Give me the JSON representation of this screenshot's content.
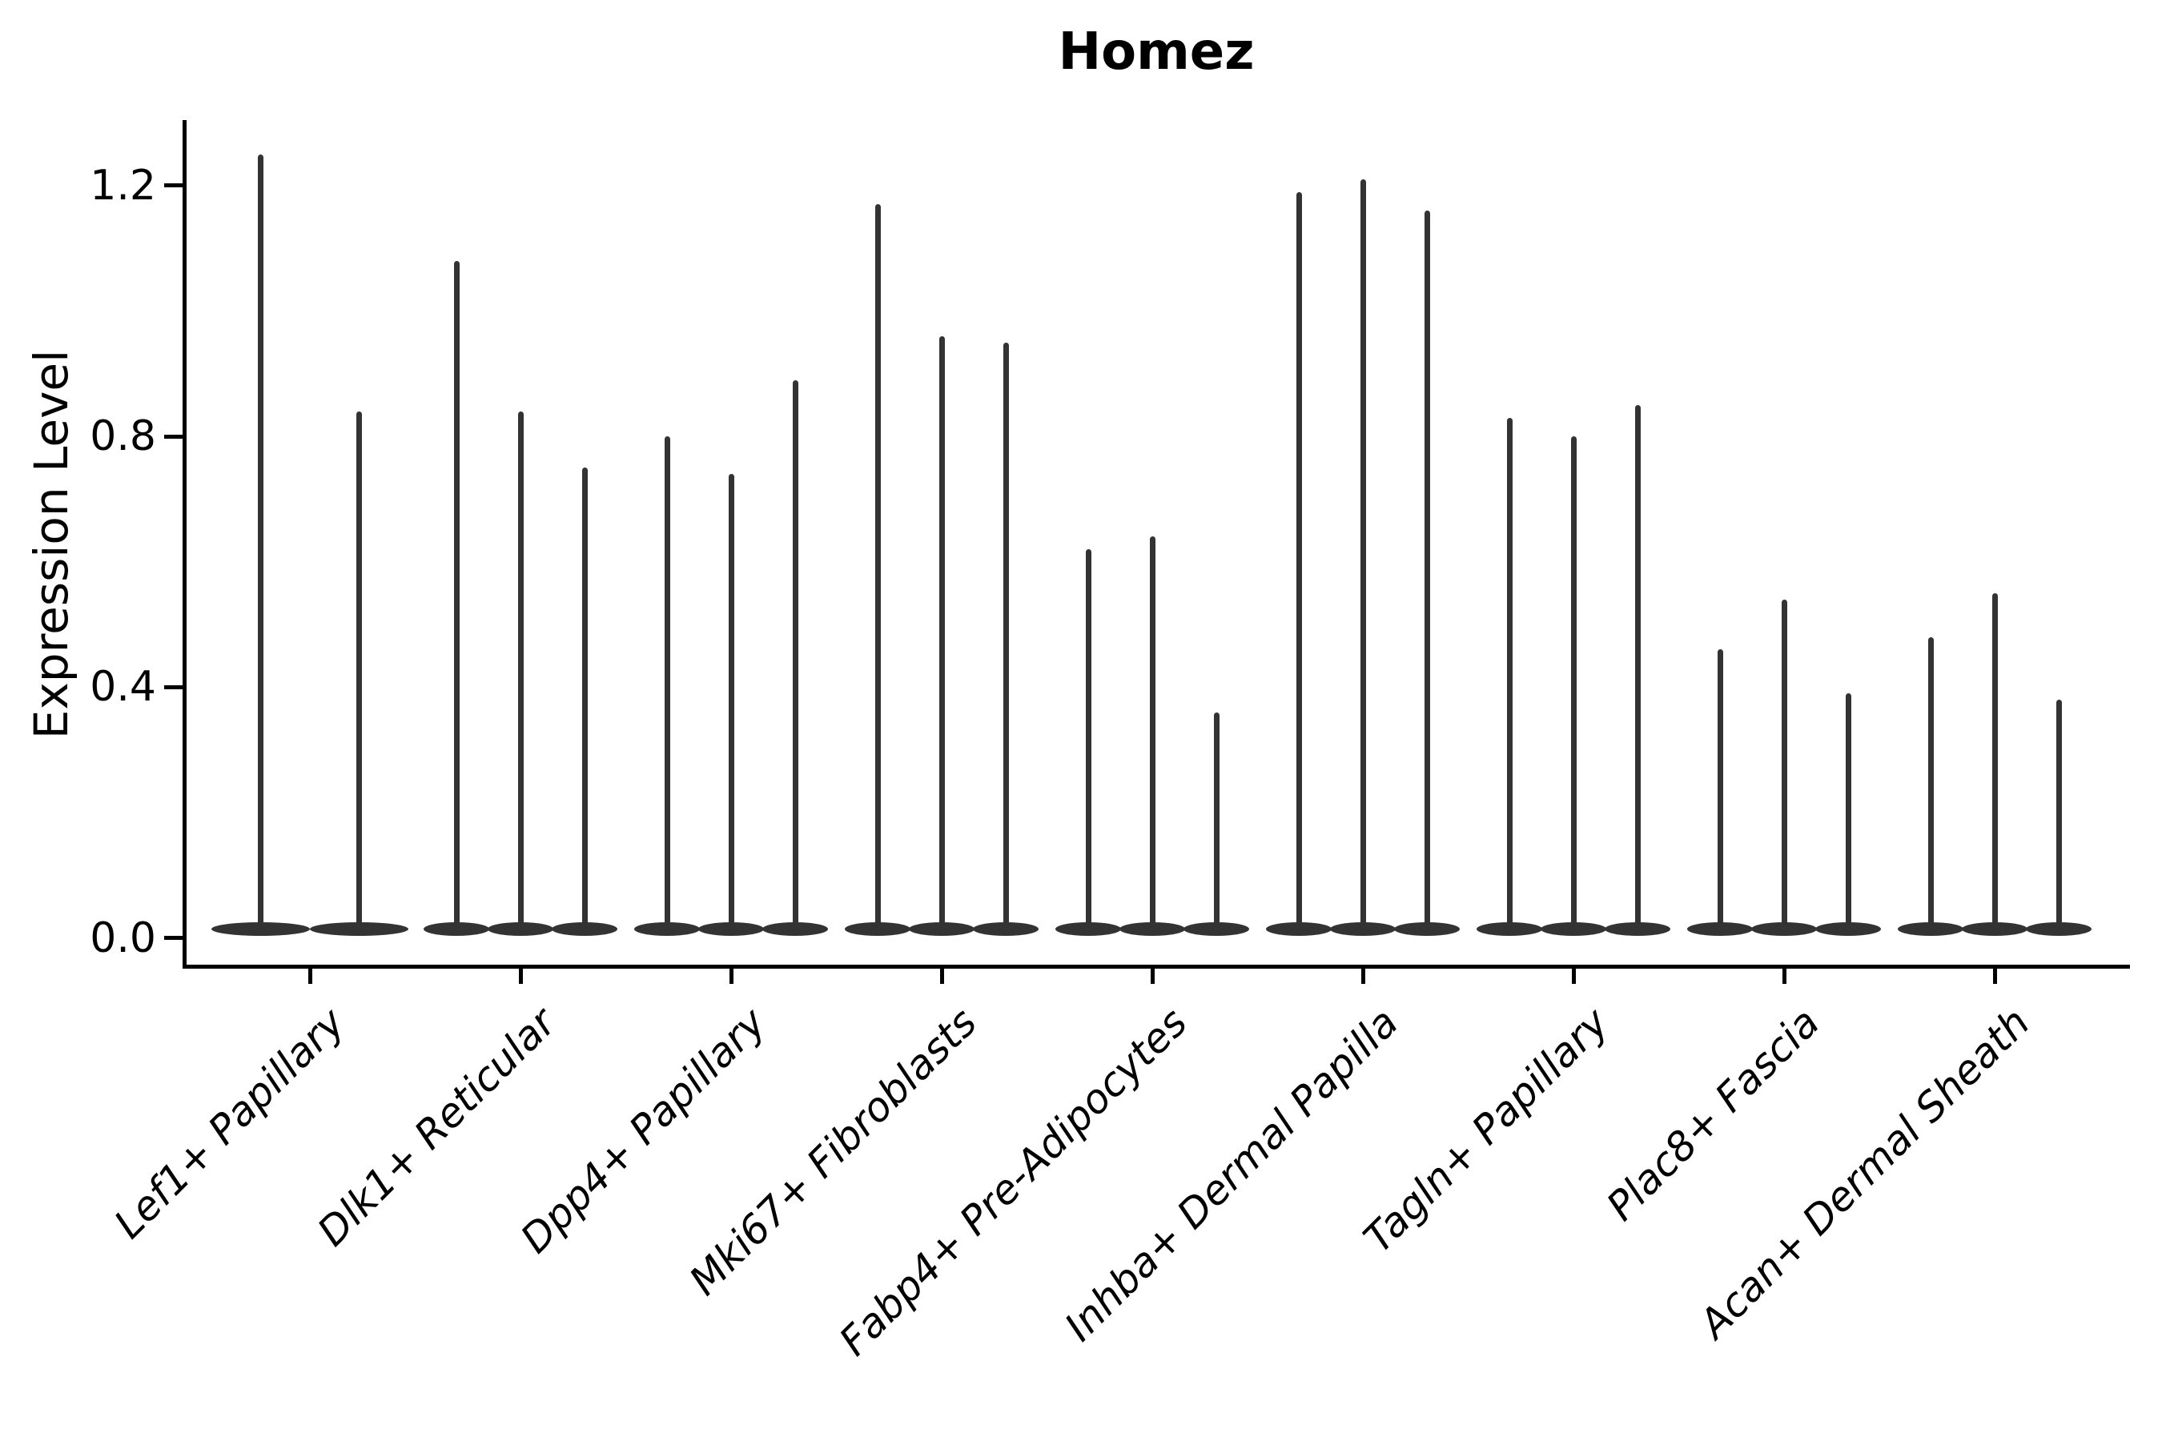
{
  "title": "Homez",
  "y_axis_label": "Expression Level",
  "chart_data": {
    "type": "violin",
    "title": "Homez",
    "ylabel": "Expression Level",
    "xlabel": "",
    "ylim": [
      0,
      1.3
    ],
    "ytick_labels": [
      "0.0",
      "0.4",
      "0.8",
      "1.2"
    ],
    "ytick_values": [
      0.0,
      0.4,
      0.8,
      1.2
    ],
    "grid": false,
    "legend": "none",
    "note": "Narrow spike-shaped violins; density mass concentrated at 0 with thin tails up to the listed maxima. First category shows 2 violins, all others 3.",
    "groups": [
      {
        "label": "Lef1+ Papillary",
        "violin_maxima": [
          1.25,
          0.84
        ]
      },
      {
        "label": "Dlk1+ Reticular",
        "violin_maxima": [
          1.08,
          0.84,
          0.75
        ]
      },
      {
        "label": "Dpp4+ Papillary",
        "violin_maxima": [
          0.8,
          0.74,
          0.89
        ]
      },
      {
        "label": "Mki67+ Fibroblasts",
        "violin_maxima": [
          1.17,
          0.96,
          0.95
        ]
      },
      {
        "label": "Fabp4+ Pre-Adipocytes",
        "violin_maxima": [
          0.62,
          0.64,
          0.36
        ]
      },
      {
        "label": "Inhba+ Dermal Papilla",
        "violin_maxima": [
          1.19,
          1.21,
          1.16
        ]
      },
      {
        "label": "Tagln+ Papillary",
        "violin_maxima": [
          0.83,
          0.8,
          0.85
        ]
      },
      {
        "label": "Plac8+ Fascia",
        "violin_maxima": [
          0.46,
          0.54,
          0.39
        ]
      },
      {
        "label": "Acan+ Dermal Sheath",
        "violin_maxima": [
          0.48,
          0.55,
          0.38
        ]
      }
    ]
  },
  "colors": {
    "violin": "#333333",
    "axis": "#000000",
    "background": "#ffffff"
  }
}
